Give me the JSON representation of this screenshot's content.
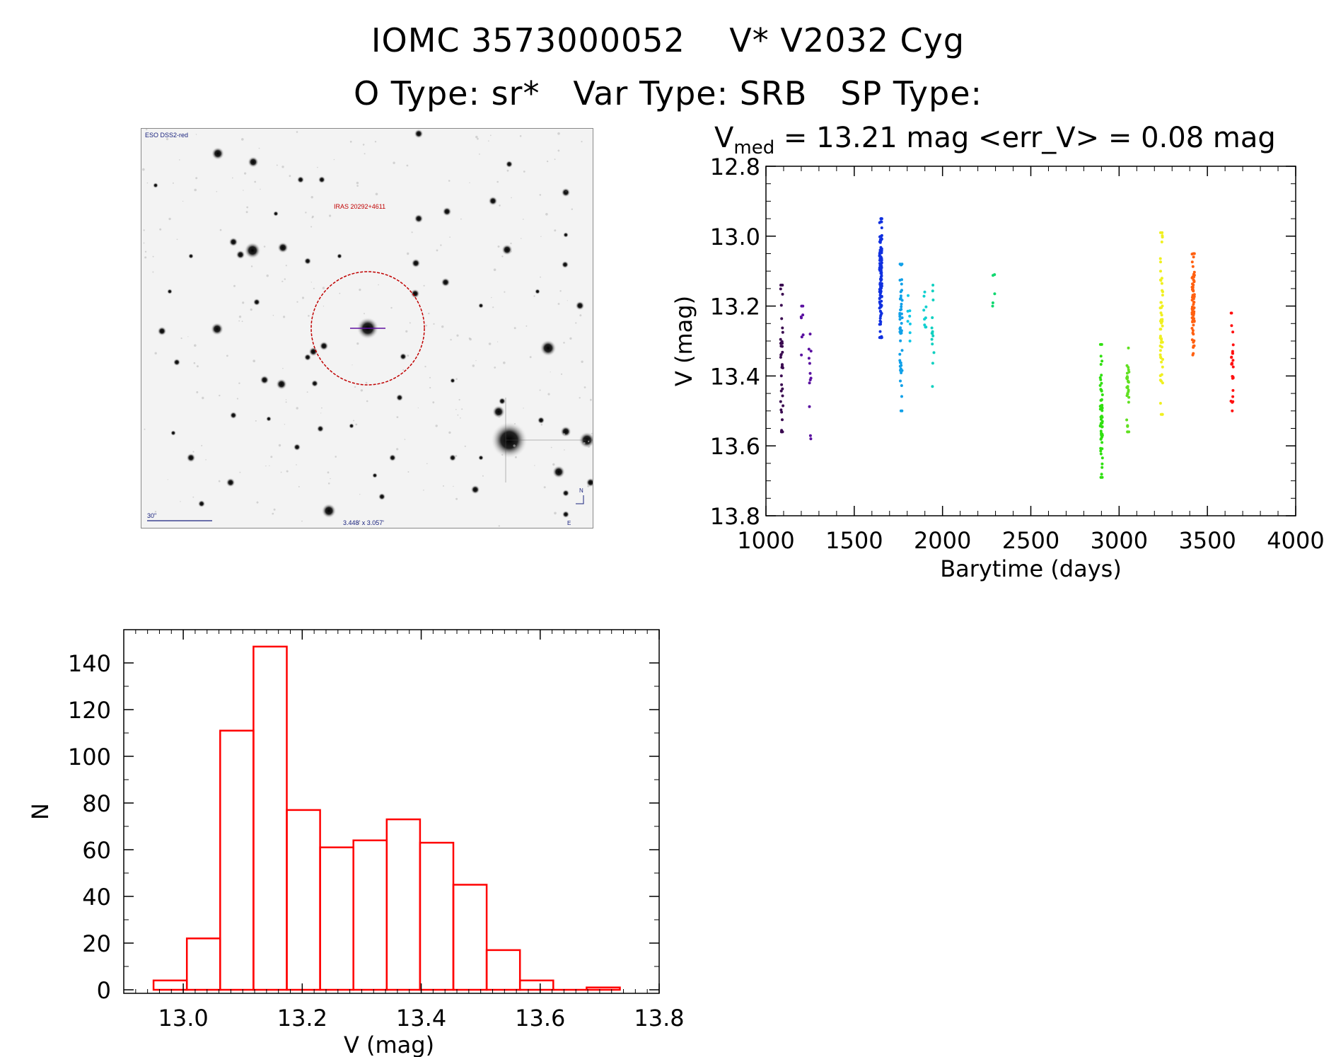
{
  "header": {
    "line1": "IOMC 3573000052    V* V2032 Cyg",
    "line2": "O Type: sr*   Var Type: SRB   SP Type:"
  },
  "image_panel": {
    "survey_label": "ESO DSS2-red",
    "target_label": "IRAS 20292+4611",
    "scale_label": "30\"",
    "fov_label": "3.448' x 3.057'",
    "north_label": "N",
    "east_label": "E"
  },
  "stats": {
    "vmed_symbol": "V",
    "vmed_sub": "med",
    "vmed_text": " = 13.21 mag <err_V> = 0.08 mag"
  },
  "colors": {
    "histogram": "#ff0000",
    "circle": "#c00000"
  },
  "chart_data": [
    {
      "type": "scatter",
      "title": "V_med = 13.21 mag <err_V> = 0.08 mag",
      "xlabel": "Barytime (days)",
      "ylabel": "V (mag)",
      "xlim": [
        1000,
        4000
      ],
      "ylim": [
        13.8,
        12.8
      ],
      "xticks": [
        1000,
        1500,
        2000,
        2500,
        3000,
        3500,
        4000
      ],
      "yticks": [
        12.8,
        13.0,
        13.2,
        13.4,
        13.6,
        13.8
      ],
      "series": [
        {
          "name": "1090",
          "color": "#3a0a50",
          "x": 1090,
          "ymin": 13.14,
          "ymax": 13.56,
          "n": 40
        },
        {
          "name": "1200",
          "color": "#5a10a0",
          "x": 1205,
          "ymin": 13.2,
          "ymax": 13.34,
          "n": 8
        },
        {
          "name": "1250",
          "color": "#5a10a0",
          "x": 1250,
          "ymin": 13.28,
          "ymax": 13.58,
          "n": 12
        },
        {
          "name": "1650",
          "color": "#1030e0",
          "x": 1650,
          "ymin": 12.95,
          "ymax": 13.29,
          "n": 140
        },
        {
          "name": "1760",
          "color": "#10a0e8",
          "x": 1765,
          "ymin": 13.08,
          "ymax": 13.5,
          "n": 50
        },
        {
          "name": "1800",
          "color": "#10c8e8",
          "x": 1810,
          "ymin": 13.17,
          "ymax": 13.3,
          "n": 8
        },
        {
          "name": "1900",
          "color": "#10d0d0",
          "x": 1900,
          "ymin": 13.16,
          "ymax": 13.26,
          "n": 10
        },
        {
          "name": "1940",
          "color": "#10d0c0",
          "x": 1945,
          "ymin": 13.14,
          "ymax": 13.43,
          "n": 14
        },
        {
          "name": "2280",
          "color": "#10d870",
          "x": 2290,
          "ymin": 13.11,
          "ymax": 13.2,
          "n": 5
        },
        {
          "name": "2900",
          "color": "#30e010",
          "x": 2900,
          "ymin": 13.31,
          "ymax": 13.69,
          "n": 60
        },
        {
          "name": "3050",
          "color": "#60e020",
          "x": 3050,
          "ymin": 13.32,
          "ymax": 13.56,
          "n": 30
        },
        {
          "name": "3240",
          "color": "#f0f020",
          "x": 3240,
          "ymin": 12.99,
          "ymax": 13.51,
          "n": 55
        },
        {
          "name": "3420",
          "color": "#ff6010",
          "x": 3420,
          "ymin": 13.05,
          "ymax": 13.34,
          "n": 70
        },
        {
          "name": "3640",
          "color": "#ff1010",
          "x": 3640,
          "ymin": 13.22,
          "ymax": 13.5,
          "n": 25
        }
      ]
    },
    {
      "type": "bar",
      "subtype": "histogram",
      "xlabel": "V (mag)",
      "ylabel": "N",
      "xlim": [
        12.9,
        13.8
      ],
      "ylim": [
        0,
        150
      ],
      "xticks": [
        13.0,
        13.2,
        13.4,
        13.6,
        13.8
      ],
      "yticks": [
        0,
        20,
        40,
        60,
        80,
        100,
        120,
        140
      ],
      "bin_edges": [
        12.95,
        13.006,
        13.062,
        13.118,
        13.174,
        13.23,
        13.286,
        13.342,
        13.398,
        13.454,
        13.51,
        13.566,
        13.622,
        13.678,
        13.734
      ],
      "values": [
        4,
        22,
        111,
        147,
        77,
        61,
        64,
        73,
        63,
        45,
        17,
        4,
        0,
        1
      ]
    }
  ]
}
